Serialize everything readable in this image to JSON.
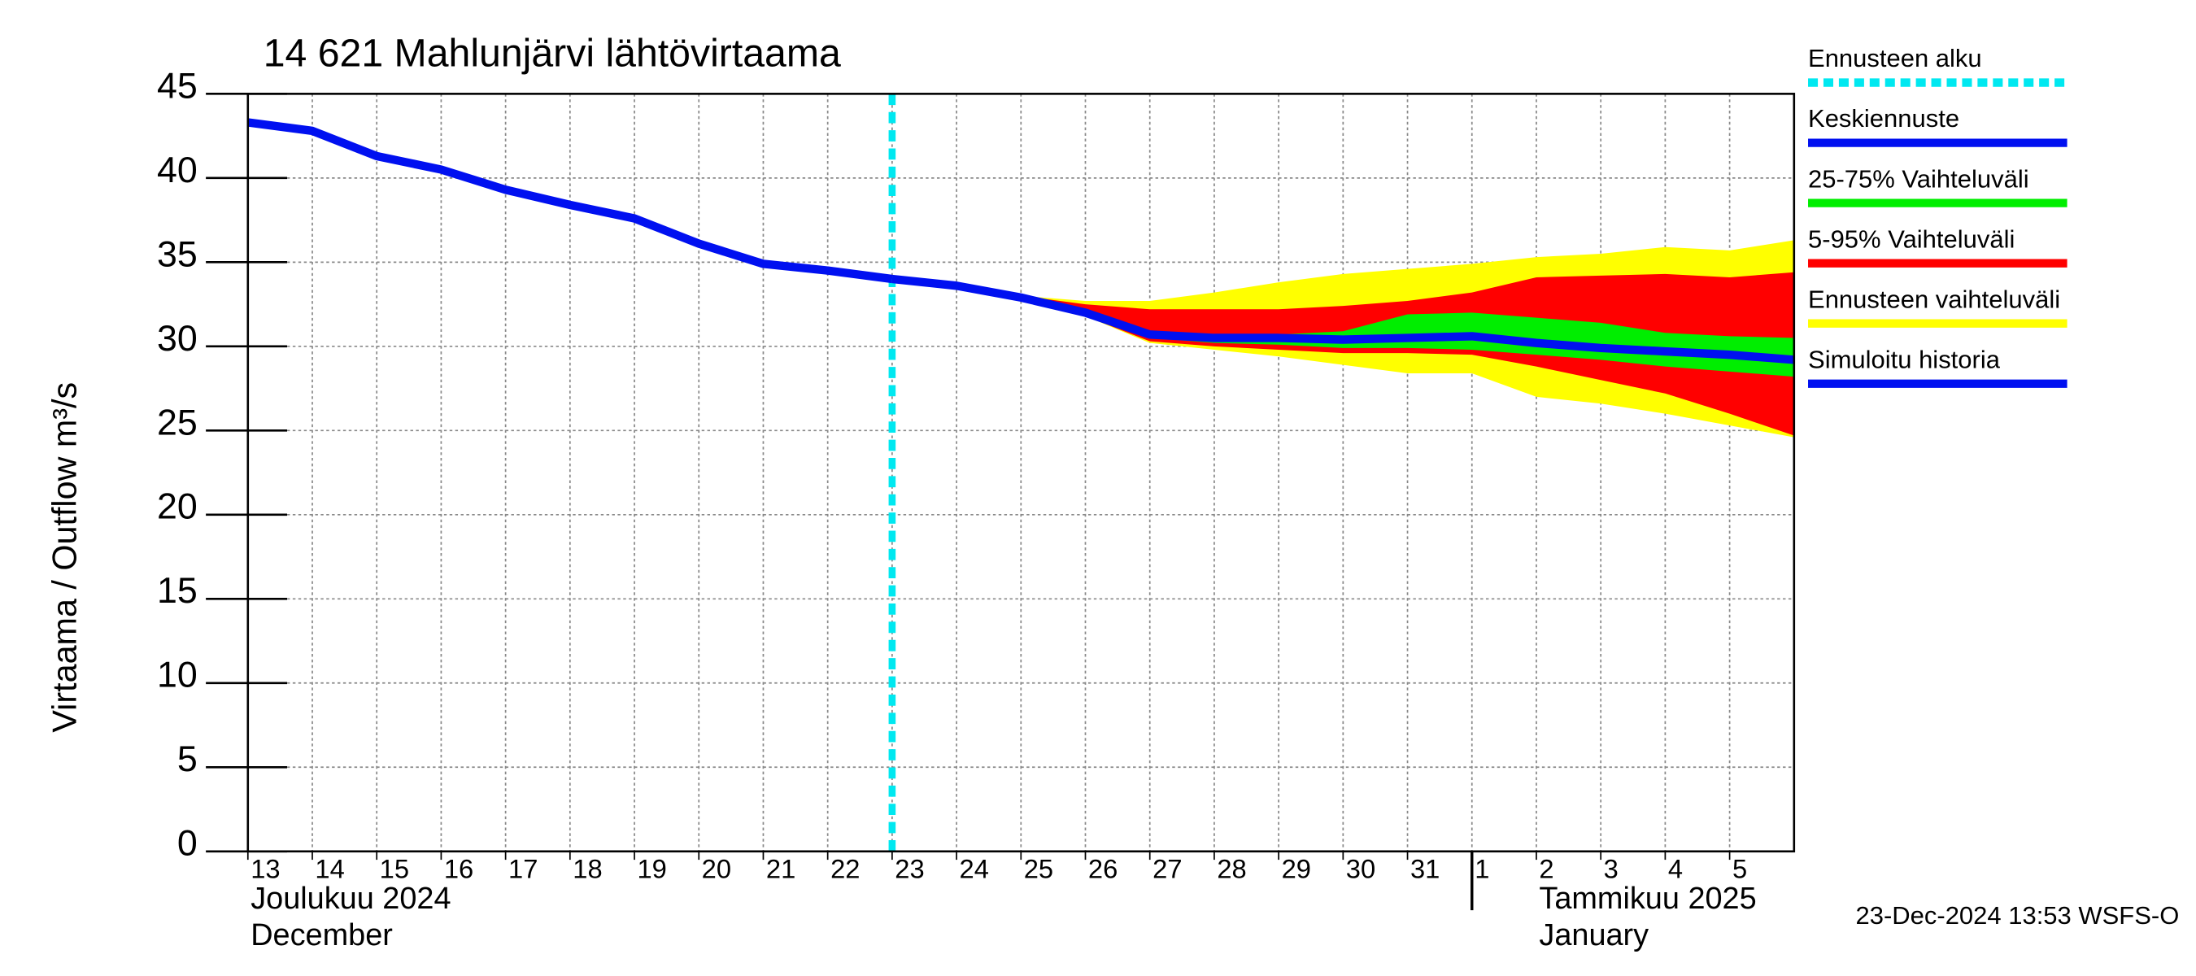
{
  "chart_data": {
    "type": "line",
    "title": "14 621 Mahlunjärvi lähtövirtaama",
    "y_label": "Virtaama / Outflow    m³/s",
    "month_labels": [
      {
        "x": "2024-12-13",
        "lines": [
          "Joulukuu  2024",
          "December"
        ]
      },
      {
        "x": "2025-01-02",
        "lines": [
          "Tammikuu  2025",
          "January"
        ]
      }
    ],
    "footer": "23-Dec-2024 13:53 WSFS-O",
    "xlim": [
      "2024-12-13",
      "2025-01-06"
    ],
    "xticks": [
      {
        "value": "2024-12-13",
        "label": "13"
      },
      {
        "value": "2024-12-14",
        "label": "14"
      },
      {
        "value": "2024-12-15",
        "label": "15"
      },
      {
        "value": "2024-12-16",
        "label": "16"
      },
      {
        "value": "2024-12-17",
        "label": "17"
      },
      {
        "value": "2024-12-18",
        "label": "18"
      },
      {
        "value": "2024-12-19",
        "label": "19"
      },
      {
        "value": "2024-12-20",
        "label": "20"
      },
      {
        "value": "2024-12-21",
        "label": "21"
      },
      {
        "value": "2024-12-22",
        "label": "22"
      },
      {
        "value": "2024-12-23",
        "label": "23"
      },
      {
        "value": "2024-12-24",
        "label": "24"
      },
      {
        "value": "2024-12-25",
        "label": "25"
      },
      {
        "value": "2024-12-26",
        "label": "26"
      },
      {
        "value": "2024-12-27",
        "label": "27"
      },
      {
        "value": "2024-12-28",
        "label": "28"
      },
      {
        "value": "2024-12-29",
        "label": "29"
      },
      {
        "value": "2024-12-30",
        "label": "30"
      },
      {
        "value": "2024-12-31",
        "label": "31"
      },
      {
        "value": "2025-01-01",
        "label": "1"
      },
      {
        "value": "2025-01-02",
        "label": "2"
      },
      {
        "value": "2025-01-03",
        "label": "3"
      },
      {
        "value": "2025-01-04",
        "label": "4"
      },
      {
        "value": "2025-01-05",
        "label": "5"
      }
    ],
    "ylim": [
      0,
      45
    ],
    "yticks": [
      0,
      5,
      10,
      15,
      20,
      25,
      30,
      35,
      40,
      45
    ],
    "grid": true,
    "forecast_start": {
      "name": "Ennusteen alku",
      "x": "2024-12-23",
      "color": "#00e8f0"
    },
    "x": [
      "2024-12-13",
      "2024-12-14",
      "2024-12-15",
      "2024-12-16",
      "2024-12-17",
      "2024-12-18",
      "2024-12-19",
      "2024-12-20",
      "2024-12-21",
      "2024-12-22",
      "2024-12-23",
      "2024-12-24",
      "2024-12-25",
      "2024-12-26",
      "2024-12-27",
      "2024-12-28",
      "2024-12-29",
      "2024-12-30",
      "2024-12-31",
      "2025-01-01",
      "2025-01-02",
      "2025-01-03",
      "2025-01-04",
      "2025-01-05",
      "2025-01-06"
    ],
    "series": [
      {
        "name": "Keskiennuste",
        "color": "#0010f0",
        "values": [
          null,
          null,
          null,
          null,
          null,
          null,
          null,
          null,
          null,
          null,
          34.0,
          33.6,
          32.9,
          32.0,
          30.7,
          30.5,
          30.5,
          30.4,
          30.5,
          30.6,
          30.2,
          29.9,
          29.7,
          29.5,
          29.2
        ]
      },
      {
        "name": "25-75% Vaihteluväli",
        "color": "#00ee00",
        "low": [
          null,
          null,
          null,
          null,
          null,
          null,
          null,
          null,
          null,
          null,
          34.0,
          33.6,
          32.9,
          31.9,
          30.5,
          30.2,
          30.1,
          29.9,
          29.9,
          29.8,
          29.5,
          29.2,
          28.8,
          28.5,
          28.2
        ],
        "high": [
          null,
          null,
          null,
          null,
          null,
          null,
          null,
          null,
          null,
          null,
          34.0,
          33.6,
          32.9,
          32.0,
          30.8,
          30.7,
          30.7,
          30.9,
          31.9,
          32.0,
          31.7,
          31.4,
          30.8,
          30.6,
          30.5
        ]
      },
      {
        "name": "5-95% Vaihteluväli",
        "color": "#ff0000",
        "low": [
          null,
          null,
          null,
          null,
          null,
          null,
          null,
          null,
          null,
          null,
          34.0,
          33.6,
          32.9,
          31.8,
          30.3,
          30.0,
          29.8,
          29.6,
          29.6,
          29.5,
          28.8,
          28.0,
          27.2,
          26.0,
          24.7
        ],
        "high": [
          null,
          null,
          null,
          null,
          null,
          null,
          null,
          null,
          null,
          null,
          34.0,
          33.6,
          33.0,
          32.5,
          32.2,
          32.2,
          32.2,
          32.4,
          32.7,
          33.2,
          34.1,
          34.2,
          34.3,
          34.1,
          34.4
        ]
      },
      {
        "name": "Ennusteen vaihteluväli",
        "color": "#ffff00",
        "low": [
          null,
          null,
          null,
          null,
          null,
          null,
          null,
          null,
          null,
          null,
          34.0,
          33.6,
          32.9,
          31.8,
          30.2,
          29.8,
          29.4,
          28.9,
          28.4,
          28.4,
          27.0,
          26.6,
          26.0,
          25.3,
          24.6
        ],
        "high": [
          null,
          null,
          null,
          null,
          null,
          null,
          null,
          null,
          null,
          null,
          34.0,
          33.6,
          33.0,
          32.7,
          32.7,
          33.2,
          33.8,
          34.3,
          34.6,
          34.9,
          35.3,
          35.5,
          35.9,
          35.7,
          36.3
        ]
      },
      {
        "name": "Simuloitu historia",
        "color": "#0010f0",
        "values": [
          43.3,
          42.8,
          41.3,
          40.5,
          39.3,
          38.4,
          37.6,
          36.1,
          34.9,
          34.5,
          34.0,
          null,
          null,
          null,
          null,
          null,
          null,
          null,
          null,
          null,
          null,
          null,
          null,
          null,
          null
        ]
      }
    ]
  }
}
